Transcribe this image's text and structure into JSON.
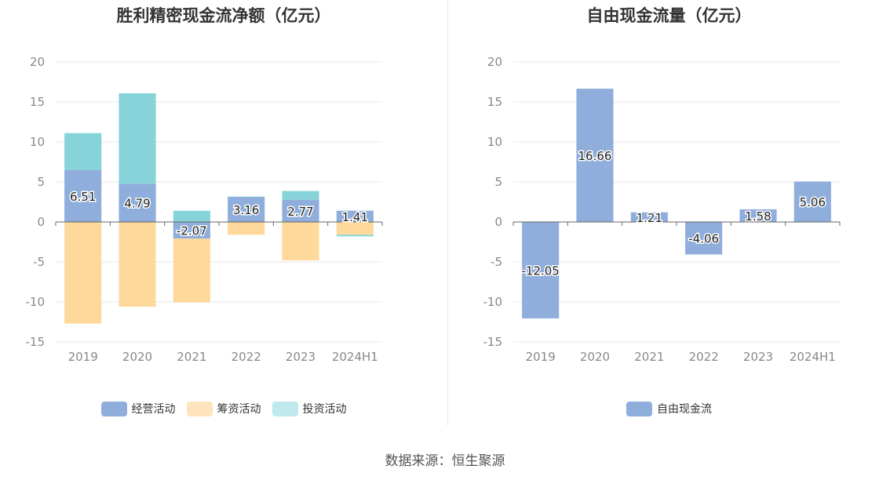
{
  "colors": {
    "operating": "#8faedc",
    "financing": "#fed99b",
    "investing": "#86d4d9",
    "free_cash_flow": "#8faedc",
    "grid": "#e6e6e6",
    "axis": "#666666"
  },
  "footer": "数据来源：恒生聚源",
  "chart_data": [
    {
      "type": "bar",
      "stacked": true,
      "title": "胜利精密现金流净额（亿元）",
      "categories": [
        "2019",
        "2020",
        "2021",
        "2022",
        "2023",
        "2024H1"
      ],
      "ylim": [
        -15,
        20
      ],
      "yticks": [
        "20",
        "15",
        "10",
        "5",
        "0",
        "-5",
        "-10",
        "-15"
      ],
      "grid": true,
      "legend_position": "bottom",
      "series": [
        {
          "name": "经营活动",
          "values": [
            6.51,
            4.79,
            -2.07,
            3.16,
            2.77,
            1.41
          ]
        },
        {
          "name": "筹资活动",
          "values": [
            -12.7,
            -10.6,
            -8.0,
            -1.6,
            -4.8,
            -1.6
          ]
        },
        {
          "name": "投资活动",
          "values": [
            4.6,
            11.3,
            1.4,
            0.0,
            1.1,
            -0.2
          ]
        }
      ],
      "data_labels": [
        "6.51",
        "4.79",
        "-2.07",
        "3.16",
        "2.77",
        "1.41"
      ]
    },
    {
      "type": "bar",
      "title": "自由现金流量（亿元）",
      "categories": [
        "2019",
        "2020",
        "2021",
        "2022",
        "2023",
        "2024H1"
      ],
      "ylim": [
        -15,
        20
      ],
      "yticks": [
        "20",
        "15",
        "10",
        "5",
        "0",
        "-5",
        "-10",
        "-15"
      ],
      "grid": true,
      "legend_position": "bottom",
      "series": [
        {
          "name": "自由现金流",
          "values": [
            -12.05,
            16.66,
            1.21,
            -4.06,
            1.58,
            5.06
          ]
        }
      ],
      "data_labels": [
        "-12.05",
        "16.66",
        "1.21",
        "-4.06",
        "1.58",
        "5.06"
      ]
    }
  ]
}
